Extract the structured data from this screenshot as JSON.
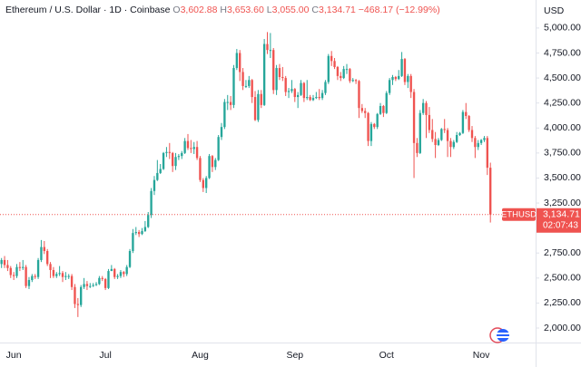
{
  "chart_data": {
    "type": "candlestick",
    "header": {
      "symbol": "Ethereum / U.S. Dollar · 1D · Coinbase",
      "open_key": "O",
      "open": "3,602.88",
      "high_key": "H",
      "high": "3,653.60",
      "low_key": "L",
      "low": "3,055.00",
      "close_key": "C",
      "close": "3,134.71",
      "change": "−468.17 (−12.99%)"
    },
    "currency": "USD",
    "price_tag": {
      "symbol": "ETHUSD",
      "price": "3,134.71",
      "countdown": "02:07:43"
    },
    "up_color": "#26a69a",
    "down_color": "#ef5350",
    "ylim": [
      1855,
      5280
    ],
    "yticks": [
      {
        "value": 2000,
        "label": "2,000.00"
      },
      {
        "value": 2250,
        "label": "2,250.00"
      },
      {
        "value": 2500,
        "label": "2,500.00"
      },
      {
        "value": 2750,
        "label": "2,750.00"
      },
      {
        "value": 3000,
        "label": "3,000.00"
      },
      {
        "value": 3250,
        "label": "3,250.00"
      },
      {
        "value": 3500,
        "label": "3,500.00"
      },
      {
        "value": 3750,
        "label": "3,750.00"
      },
      {
        "value": 4000,
        "label": "4,000.00"
      },
      {
        "value": 4250,
        "label": "4,250.00"
      },
      {
        "value": 4500,
        "label": "4,500.00"
      },
      {
        "value": 4750,
        "label": "4,750.00"
      },
      {
        "value": 5000,
        "label": "5,000.00"
      }
    ],
    "categories": [
      null,
      null,
      null,
      null,
      "Jun",
      null,
      null,
      null,
      null,
      null,
      null,
      null,
      null,
      null,
      null,
      null,
      null,
      null,
      null,
      null,
      null,
      null,
      null,
      null,
      null,
      null,
      null,
      null,
      null,
      null,
      null,
      null,
      null,
      null,
      "Jul",
      null,
      null,
      null,
      null,
      null,
      null,
      null,
      null,
      null,
      null,
      null,
      null,
      null,
      null,
      null,
      null,
      null,
      null,
      null,
      null,
      null,
      null,
      null,
      null,
      null,
      null,
      null,
      null,
      null,
      null,
      "Aug",
      null,
      null,
      null,
      null,
      null,
      null,
      null,
      null,
      null,
      null,
      null,
      null,
      null,
      null,
      null,
      null,
      null,
      null,
      null,
      null,
      null,
      null,
      null,
      null,
      null,
      null,
      null,
      null,
      null,
      null,
      "Sep",
      null,
      null,
      null,
      null,
      null,
      null,
      null,
      null,
      null,
      null,
      null,
      null,
      null,
      null,
      null,
      null,
      null,
      null,
      null,
      null,
      null,
      null,
      null,
      null,
      null,
      null,
      null,
      null,
      null,
      "Oct",
      null,
      null,
      null,
      null,
      null,
      null,
      null,
      null,
      null,
      null,
      null,
      null,
      null,
      null,
      null,
      null,
      null,
      null,
      null,
      null,
      null,
      null,
      null,
      null,
      null,
      null,
      null,
      null,
      null,
      null,
      "Nov",
      null,
      null,
      null
    ],
    "ohlc": [
      [
        2640,
        2700,
        2600,
        2680
      ],
      [
        2680,
        2720,
        2600,
        2630
      ],
      [
        2630,
        2680,
        2570,
        2600
      ],
      [
        2600,
        2620,
        2500,
        2530
      ],
      [
        2530,
        2560,
        2480,
        2520
      ],
      [
        2520,
        2640,
        2500,
        2610
      ],
      [
        2610,
        2660,
        2570,
        2600
      ],
      [
        2600,
        2680,
        2580,
        2610
      ],
      [
        2610,
        2630,
        2400,
        2420
      ],
      [
        2420,
        2510,
        2390,
        2480
      ],
      [
        2480,
        2540,
        2460,
        2520
      ],
      [
        2520,
        2540,
        2490,
        2510
      ],
      [
        2510,
        2700,
        2490,
        2680
      ],
      [
        2680,
        2880,
        2660,
        2810
      ],
      [
        2810,
        2870,
        2740,
        2770
      ],
      [
        2770,
        2790,
        2620,
        2640
      ],
      [
        2640,
        2660,
        2500,
        2580
      ],
      [
        2580,
        2610,
        2500,
        2520
      ],
      [
        2520,
        2560,
        2500,
        2540
      ],
      [
        2540,
        2620,
        2520,
        2550
      ],
      [
        2550,
        2570,
        2460,
        2510
      ],
      [
        2510,
        2560,
        2480,
        2520
      ],
      [
        2520,
        2540,
        2490,
        2520
      ],
      [
        2520,
        2540,
        2380,
        2410
      ],
      [
        2410,
        2440,
        2200,
        2240
      ],
      [
        2240,
        2300,
        2110,
        2230
      ],
      [
        2230,
        2430,
        2210,
        2410
      ],
      [
        2410,
        2500,
        2390,
        2440
      ],
      [
        2440,
        2470,
        2380,
        2420
      ],
      [
        2420,
        2450,
        2400,
        2420
      ],
      [
        2420,
        2450,
        2410,
        2430
      ],
      [
        2430,
        2460,
        2420,
        2440
      ],
      [
        2440,
        2520,
        2430,
        2500
      ],
      [
        2500,
        2520,
        2470,
        2490
      ],
      [
        2490,
        2500,
        2380,
        2400
      ],
      [
        2400,
        2590,
        2390,
        2570
      ],
      [
        2570,
        2630,
        2570,
        2590
      ],
      [
        2590,
        2600,
        2490,
        2510
      ],
      [
        2510,
        2540,
        2490,
        2520
      ],
      [
        2520,
        2580,
        2500,
        2560
      ],
      [
        2560,
        2570,
        2510,
        2540
      ],
      [
        2540,
        2630,
        2520,
        2610
      ],
      [
        2610,
        2790,
        2600,
        2770
      ],
      [
        2770,
        2990,
        2750,
        2950
      ],
      [
        2950,
        3010,
        2930,
        2960
      ],
      [
        2960,
        2980,
        2910,
        2940
      ],
      [
        2940,
        3000,
        2930,
        2970
      ],
      [
        2970,
        3070,
        2960,
        3010
      ],
      [
        3010,
        3160,
        3000,
        3130
      ],
      [
        3130,
        3400,
        3100,
        3370
      ],
      [
        3370,
        3520,
        3330,
        3480
      ],
      [
        3480,
        3680,
        3470,
        3550
      ],
      [
        3550,
        3640,
        3540,
        3590
      ],
      [
        3590,
        3760,
        3580,
        3750
      ],
      [
        3750,
        3810,
        3710,
        3760
      ],
      [
        3760,
        3850,
        3690,
        3750
      ],
      [
        3750,
        3760,
        3560,
        3620
      ],
      [
        3620,
        3750,
        3580,
        3710
      ],
      [
        3710,
        3740,
        3680,
        3720
      ],
      [
        3720,
        3770,
        3690,
        3750
      ],
      [
        3750,
        3900,
        3740,
        3870
      ],
      [
        3870,
        3940,
        3780,
        3800
      ],
      [
        3800,
        3880,
        3750,
        3790
      ],
      [
        3790,
        3860,
        3740,
        3810
      ],
      [
        3810,
        3870,
        3680,
        3700
      ],
      [
        3700,
        3720,
        3460,
        3480
      ],
      [
        3480,
        3500,
        3360,
        3400
      ],
      [
        3400,
        3520,
        3350,
        3500
      ],
      [
        3500,
        3740,
        3490,
        3720
      ],
      [
        3720,
        3730,
        3560,
        3610
      ],
      [
        3610,
        3700,
        3580,
        3680
      ],
      [
        3680,
        3930,
        3670,
        3910
      ],
      [
        3910,
        4050,
        3880,
        4010
      ],
      [
        4010,
        4290,
        3990,
        4260
      ],
      [
        4260,
        4330,
        4180,
        4260
      ],
      [
        4260,
        4320,
        4180,
        4230
      ],
      [
        4230,
        4630,
        4200,
        4600
      ],
      [
        4600,
        4790,
        4580,
        4750
      ],
      [
        4750,
        4780,
        4470,
        4560
      ],
      [
        4560,
        4600,
        4380,
        4420
      ],
      [
        4420,
        4480,
        4400,
        4420
      ],
      [
        4420,
        4520,
        4400,
        4480
      ],
      [
        4480,
        4490,
        4250,
        4310
      ],
      [
        4310,
        4370,
        4070,
        4080
      ],
      [
        4080,
        4380,
        4060,
        4340
      ],
      [
        4340,
        4380,
        4200,
        4230
      ],
      [
        4230,
        4890,
        4220,
        4840
      ],
      [
        4840,
        4960,
        4740,
        4780
      ],
      [
        4780,
        4950,
        4700,
        4780
      ],
      [
        4780,
        4800,
        4340,
        4380
      ],
      [
        4380,
        4630,
        4330,
        4600
      ],
      [
        4600,
        4640,
        4480,
        4510
      ],
      [
        4510,
        4610,
        4470,
        4500
      ],
      [
        4500,
        4520,
        4320,
        4360
      ],
      [
        4360,
        4400,
        4300,
        4370
      ],
      [
        4370,
        4480,
        4350,
        4390
      ],
      [
        4390,
        4400,
        4260,
        4310
      ],
      [
        4310,
        4360,
        4200,
        4330
      ],
      [
        4330,
        4480,
        4320,
        4450
      ],
      [
        4450,
        4460,
        4260,
        4300
      ],
      [
        4300,
        4480,
        4280,
        4310
      ],
      [
        4310,
        4330,
        4270,
        4280
      ],
      [
        4280,
        4330,
        4270,
        4300
      ],
      [
        4300,
        4360,
        4290,
        4310
      ],
      [
        4310,
        4390,
        4280,
        4300
      ],
      [
        4300,
        4380,
        4280,
        4350
      ],
      [
        4350,
        4480,
        4330,
        4460
      ],
      [
        4460,
        4740,
        4440,
        4720
      ],
      [
        4720,
        4770,
        4620,
        4670
      ],
      [
        4670,
        4700,
        4590,
        4610
      ],
      [
        4610,
        4620,
        4480,
        4520
      ],
      [
        4520,
        4560,
        4470,
        4500
      ],
      [
        4500,
        4620,
        4490,
        4590
      ],
      [
        4590,
        4640,
        4540,
        4590
      ],
      [
        4590,
        4600,
        4450,
        4470
      ],
      [
        4470,
        4500,
        4460,
        4480
      ],
      [
        4480,
        4490,
        4440,
        4470
      ],
      [
        4470,
        4480,
        4100,
        4200
      ],
      [
        4200,
        4240,
        4150,
        4170
      ],
      [
        4170,
        4200,
        4100,
        4150
      ],
      [
        4150,
        4160,
        3820,
        3870
      ],
      [
        3870,
        4060,
        3820,
        4040
      ],
      [
        4040,
        4050,
        3990,
        4010
      ],
      [
        4010,
        4150,
        3990,
        4140
      ],
      [
        4140,
        4250,
        4130,
        4220
      ],
      [
        4220,
        4230,
        4110,
        4150
      ],
      [
        4150,
        4370,
        4140,
        4350
      ],
      [
        4350,
        4500,
        4330,
        4480
      ],
      [
        4480,
        4530,
        4430,
        4510
      ],
      [
        4510,
        4520,
        4470,
        4490
      ],
      [
        4490,
        4580,
        4480,
        4520
      ],
      [
        4520,
        4760,
        4510,
        4690
      ],
      [
        4690,
        4700,
        4430,
        4460
      ],
      [
        4460,
        4540,
        4400,
        4520
      ],
      [
        4520,
        4540,
        4300,
        4360
      ],
      [
        4360,
        4390,
        3500,
        3850
      ],
      [
        3850,
        3900,
        3710,
        3750
      ],
      [
        3750,
        4180,
        3740,
        4150
      ],
      [
        4150,
        4290,
        4130,
        4250
      ],
      [
        4250,
        4270,
        3900,
        4130
      ],
      [
        4130,
        4210,
        3950,
        3980
      ],
      [
        3980,
        4090,
        3860,
        3890
      ],
      [
        3890,
        3960,
        3700,
        3830
      ],
      [
        3830,
        3900,
        3820,
        3880
      ],
      [
        3880,
        4000,
        3870,
        3990
      ],
      [
        3990,
        4090,
        3950,
        3980
      ],
      [
        3980,
        4000,
        3710,
        3870
      ],
      [
        3870,
        3900,
        3710,
        3810
      ],
      [
        3810,
        3880,
        3790,
        3860
      ],
      [
        3860,
        3960,
        3850,
        3930
      ],
      [
        3930,
        3960,
        3920,
        3950
      ],
      [
        3950,
        4180,
        3940,
        4160
      ],
      [
        4160,
        4250,
        4090,
        4120
      ],
      [
        4120,
        4130,
        3960,
        3980
      ],
      [
        3980,
        4020,
        3860,
        3900
      ],
      [
        3900,
        3920,
        3700,
        3810
      ],
      [
        3810,
        3880,
        3780,
        3850
      ],
      [
        3850,
        3890,
        3830,
        3880
      ],
      [
        3880,
        3920,
        3860,
        3900
      ],
      [
        3900,
        3920,
        3530,
        3602.88
      ],
      [
        3602.88,
        3653.6,
        3055,
        3134.71
      ]
    ]
  }
}
